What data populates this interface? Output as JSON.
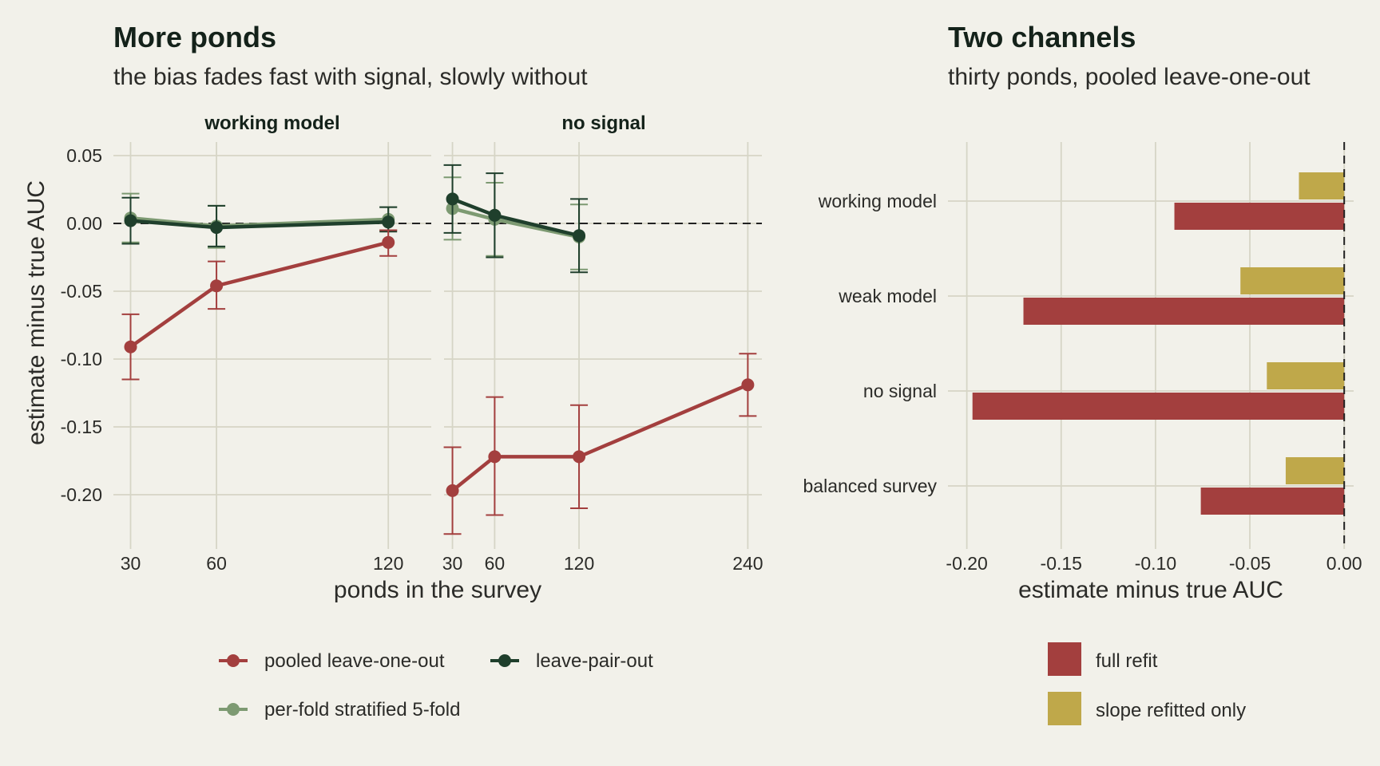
{
  "colors": {
    "pooled": "#a33f3e",
    "lpo": "#1f3f2c",
    "perfold": "#7d9a72",
    "full_refit": "#a33f3e",
    "slope_only": "#bfa84a"
  },
  "left": {
    "title": "More ponds",
    "subtitle": "the bias fades fast with signal, slowly without",
    "facet_titles": [
      "working model",
      "no signal"
    ],
    "xlabel": "ponds in the survey",
    "ylabel": "estimate minus true AUC",
    "yticks": [
      "0.05",
      "0.00",
      "-0.05",
      "-0.10",
      "-0.15",
      "-0.20"
    ],
    "facet1_xticks": [
      "30",
      "60",
      "120"
    ],
    "facet2_xticks": [
      "30",
      "60",
      "120",
      "240"
    ],
    "legend": [
      {
        "key": "pooled",
        "label": "pooled leave-one-out"
      },
      {
        "key": "lpo",
        "label": "leave-pair-out"
      },
      {
        "key": "perfold",
        "label": "per-fold stratified 5-fold"
      }
    ]
  },
  "right": {
    "title": "Two channels",
    "subtitle": "thirty ponds, pooled leave-one-out",
    "xlabel": "estimate minus true AUC",
    "xticks": [
      "-0.20",
      "-0.15",
      "-0.10",
      "-0.05",
      "0.00"
    ],
    "categories": [
      "working model",
      "weak model",
      "no signal",
      "balanced survey"
    ],
    "legend": [
      {
        "key": "full_refit",
        "label": "full refit"
      },
      {
        "key": "slope_only",
        "label": "slope refitted only"
      }
    ]
  },
  "chart_data": [
    {
      "type": "line",
      "title": "More ponds",
      "subtitle": "the bias fades fast with signal, slowly without",
      "xlabel": "ponds in the survey",
      "ylabel": "estimate minus true AUC",
      "ylim": [
        -0.24,
        0.06
      ],
      "facets": [
        {
          "name": "working model",
          "xlim": [
            24,
            135
          ],
          "series": [
            {
              "name": "per-fold stratified 5-fold",
              "key": "perfold",
              "x": [
                30,
                60,
                120
              ],
              "y": [
                0.004,
                -0.002,
                0.003
              ],
              "lo": [
                -0.014,
                -0.018,
                -0.005
              ],
              "hi": [
                0.022,
                0.013,
                0.012
              ]
            },
            {
              "name": "leave-pair-out",
              "key": "lpo",
              "x": [
                30,
                60,
                120
              ],
              "y": [
                0.002,
                -0.003,
                0.001
              ],
              "lo": [
                -0.015,
                -0.017,
                -0.006
              ],
              "hi": [
                0.019,
                0.013,
                0.012
              ]
            },
            {
              "name": "pooled leave-one-out",
              "key": "pooled",
              "x": [
                30,
                60,
                120
              ],
              "y": [
                -0.091,
                -0.046,
                -0.014
              ],
              "lo": [
                -0.115,
                -0.063,
                -0.024
              ],
              "hi": [
                -0.067,
                -0.028,
                -0.005
              ]
            }
          ]
        },
        {
          "name": "no signal",
          "xlim": [
            24,
            250
          ],
          "series": [
            {
              "name": "per-fold stratified 5-fold",
              "key": "perfold",
              "x": [
                30,
                60,
                120
              ],
              "y": [
                0.011,
                0.003,
                -0.01
              ],
              "lo": [
                -0.012,
                -0.024,
                -0.034
              ],
              "hi": [
                0.034,
                0.03,
                0.014
              ]
            },
            {
              "name": "leave-pair-out",
              "key": "lpo",
              "x": [
                30,
                60,
                120
              ],
              "y": [
                0.018,
                0.006,
                -0.009
              ],
              "lo": [
                -0.007,
                -0.025,
                -0.036
              ],
              "hi": [
                0.043,
                0.037,
                0.018
              ]
            },
            {
              "name": "pooled leave-one-out",
              "key": "pooled",
              "x": [
                30,
                60,
                120,
                240
              ],
              "y": [
                -0.197,
                -0.172,
                -0.172,
                -0.119
              ],
              "lo": [
                -0.229,
                -0.215,
                -0.21,
                -0.142
              ],
              "hi": [
                -0.165,
                -0.128,
                -0.134,
                -0.096
              ]
            }
          ]
        }
      ]
    },
    {
      "type": "bar",
      "orientation": "horizontal",
      "title": "Two channels",
      "subtitle": "thirty ponds, pooled leave-one-out",
      "xlabel": "estimate minus true AUC",
      "xlim": [
        -0.2,
        0.0
      ],
      "categories": [
        "working model",
        "weak model",
        "no signal",
        "balanced survey"
      ],
      "series": [
        {
          "name": "full refit",
          "key": "full_refit",
          "values": [
            -0.09,
            -0.17,
            -0.197,
            -0.076
          ]
        },
        {
          "name": "slope refitted only",
          "key": "slope_only",
          "values": [
            -0.024,
            -0.055,
            -0.041,
            -0.031
          ]
        }
      ],
      "reference_line": 0.0
    }
  ]
}
